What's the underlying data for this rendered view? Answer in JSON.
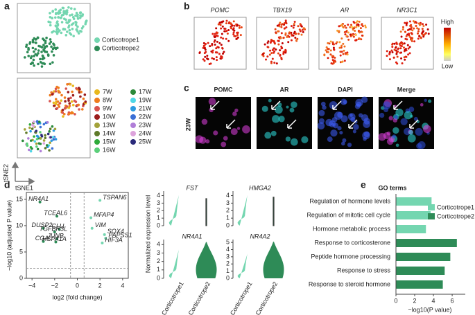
{
  "panel_labels": [
    "a",
    "b",
    "c",
    "d",
    "e"
  ],
  "panel_a": {
    "clusters": [
      {
        "name": "Corticotrope1",
        "color": "#74d6b0"
      },
      {
        "name": "Corticotrope2",
        "color": "#2e8b57"
      }
    ],
    "weeks": [
      {
        "name": "7W",
        "color": "#e8b81e"
      },
      {
        "name": "8W",
        "color": "#f07c1e"
      },
      {
        "name": "9W",
        "color": "#d9534f"
      },
      {
        "name": "10W",
        "color": "#9b1c1c"
      },
      {
        "name": "13W",
        "color": "#a3a23a"
      },
      {
        "name": "14W",
        "color": "#5f7a2a"
      },
      {
        "name": "15W",
        "color": "#2eaa3a"
      },
      {
        "name": "16W",
        "color": "#5ccf7a"
      },
      {
        "name": "17W",
        "color": "#2a8a3a"
      },
      {
        "name": "19W",
        "color": "#4fd8e6"
      },
      {
        "name": "21W",
        "color": "#2b9be0"
      },
      {
        "name": "22W",
        "color": "#3a6fd6"
      },
      {
        "name": "23W",
        "color": "#b07ed8"
      },
      {
        "name": "24W",
        "color": "#dda3dc"
      },
      {
        "name": "25W",
        "color": "#2a2a7a"
      }
    ],
    "axis_labels": [
      "tSNE2",
      "tSNE1"
    ]
  },
  "panel_b": {
    "genes": [
      "POMC",
      "TBX19",
      "AR",
      "NR3C1"
    ],
    "scale_high": "High",
    "scale_low": "Low"
  },
  "panel_c": {
    "stains": [
      {
        "name": "POMC",
        "color": "#e040e0"
      },
      {
        "name": "AR",
        "color": "#30e0e0"
      },
      {
        "name": "DAPI",
        "color": "#4060ff"
      },
      {
        "name": "Merge",
        "color": "#ffffff"
      }
    ],
    "row_label": "23W"
  },
  "chart_data": [
    {
      "type": "scatter",
      "xlabel": "log2 (fold change)",
      "ylabel": "−log10 (adjusted P value)",
      "xlim": [
        -4.5,
        4.5
      ],
      "ylim": [
        0,
        16.3
      ],
      "xticks": [
        {
          "value": -4,
          "label": "−4"
        },
        {
          "value": -2,
          "label": "−2"
        },
        0,
        2,
        4
      ],
      "yticks": [
        0,
        5,
        10,
        15
      ],
      "thresholds": {
        "x": [
          -0.6,
          0.6
        ],
        "y": 1.9
      },
      "genes": {
        "labels": [
          "NR4A1",
          "TCEAL6",
          "DUSP2",
          "CLU",
          "TGFBR3L",
          "JUNB",
          "CGA",
          "HSPA1A",
          "TSPAN6",
          "MFAP4",
          "VIM",
          "SOX4",
          "PAPSS1",
          "HIF3A"
        ],
        "x": [
          -3.3,
          -1.8,
          -3.0,
          -1.6,
          -2.0,
          -1.8,
          -3.0,
          -1.9,
          2.0,
          1.2,
          1.3,
          2.4,
          2.5,
          2.2
        ],
        "y": [
          14.5,
          11.8,
          9.5,
          9.3,
          8.8,
          7.5,
          7.0,
          6.9,
          14.8,
          11.5,
          9.5,
          8.3,
          7.6,
          6.7
        ],
        "colors": [
          "#2e8b57",
          "#74d6b0"
        ]
      }
    },
    {
      "type": "violin",
      "ylabel": "Normalized expression level",
      "categories": [
        "Corticotrope1",
        "Corticotrope2"
      ],
      "colors": [
        "#74d6b0",
        "#2e8b57"
      ],
      "panels": [
        {
          "gene": "FST",
          "ylim": [
            0,
            4.6
          ],
          "yticks": [
            0,
            1,
            2,
            3,
            4
          ],
          "max": [
            4.3,
            3.6
          ]
        },
        {
          "gene": "HMGA2",
          "ylim": [
            0,
            4.6
          ],
          "yticks": [
            0,
            1,
            2,
            3,
            4
          ],
          "max": [
            4.3,
            3.8
          ]
        },
        {
          "gene": "NR4A1",
          "ylim": [
            0,
            4.6
          ],
          "yticks": [
            0,
            1,
            2,
            3,
            4
          ],
          "max": [
            3.6,
            4.3
          ]
        },
        {
          "gene": "NR4A2",
          "ylim": [
            0,
            5.4
          ],
          "yticks": [
            0,
            1,
            2,
            3,
            4,
            5
          ],
          "max": [
            3.6,
            5.1
          ]
        }
      ]
    },
    {
      "type": "hbar",
      "title": "GO terms",
      "xlabel": "−log10(P value)",
      "categories": [
        "Regulation of hormone levels",
        "Regulation of mitotic cell cycle",
        "Hormone metabolic process",
        "Response to corticosterone",
        "Peptide hormone processing",
        "Response to stress",
        "Response to steroid hormone"
      ],
      "series": [
        {
          "name": "Corticotrope1",
          "color": "#74d6b0",
          "values": [
            3.8,
            3.7,
            3.2,
            null,
            null,
            null,
            null
          ]
        },
        {
          "name": "Corticotrope2",
          "color": "#2e8b57",
          "values": [
            null,
            null,
            null,
            6.5,
            5.8,
            5.2,
            5.0
          ]
        }
      ],
      "xlim": [
        0,
        7.4
      ],
      "xticks": [
        0,
        2,
        4,
        6
      ]
    }
  ]
}
